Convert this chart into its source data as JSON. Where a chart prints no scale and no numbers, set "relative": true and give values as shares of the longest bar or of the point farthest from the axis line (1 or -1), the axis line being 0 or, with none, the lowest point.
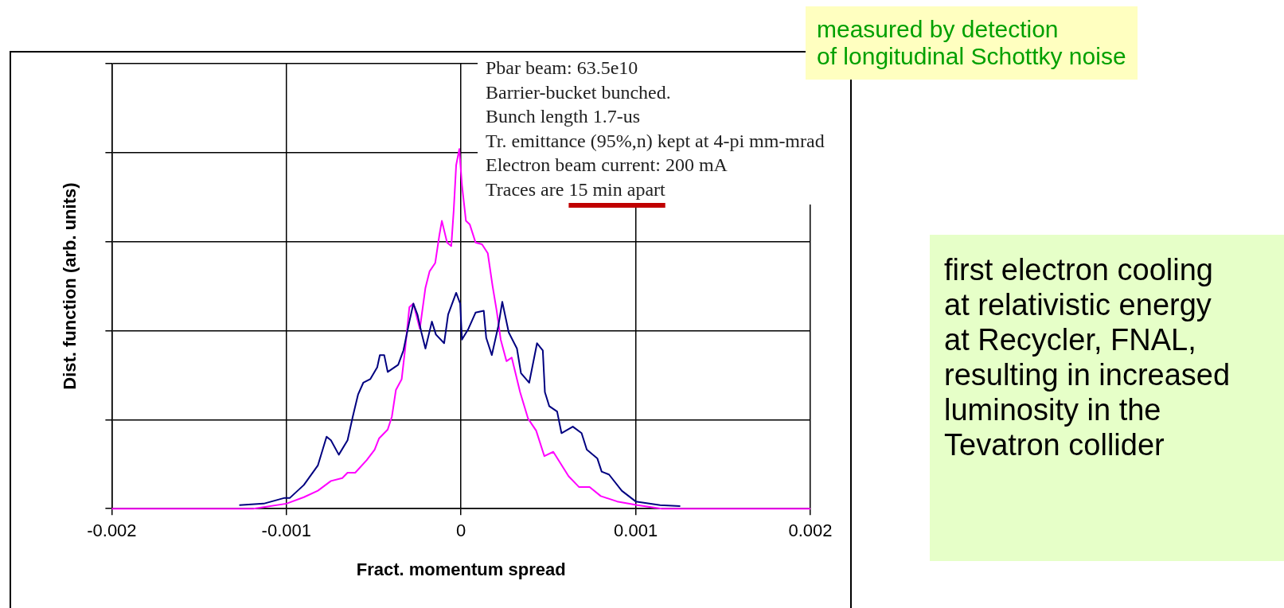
{
  "chart_data": {
    "type": "line",
    "xlabel": "Fract. momentum spread",
    "ylabel": "Dist. function (arb. units)",
    "relative": true,
    "xlim": [
      -0.002,
      0.002
    ],
    "xticks": [
      -0.002,
      -0.001,
      0,
      0.001,
      0.002
    ],
    "grid": true,
    "legend": false,
    "marker": "none",
    "annotations": [
      "Pbar beam: 63.5e10",
      "Barrier-bucket bunched.",
      "Bunch length 1.7-us",
      "Tr. emittance (95%,n) kept at 4-pi mm-mrad",
      "Electron beam current: 200 mA",
      "Traces are 15 min apart",
      "measured by detection",
      "of longitudinal Schottky noise",
      "first electron cooling at relativistic energy at Recycler, FNAL, resulting in increased luminosity in the Tevatron collider"
    ],
    "series": [
      {
        "color": "#000080",
        "x": [
          -0.00127,
          -0.00113,
          -0.00101,
          -0.00098,
          -0.0009,
          -0.00082,
          -0.00077,
          -0.000745,
          -0.0007,
          -0.00065,
          -0.00062,
          -0.00059,
          -0.00056,
          -0.00052,
          -0.00048,
          -0.000465,
          -0.00044,
          -0.00042,
          -0.00036,
          -0.00033,
          -0.000296,
          -0.000273,
          -0.00025,
          -0.000227,
          -0.000204,
          -0.000167,
          -0.000144,
          -9.7e-05,
          -7.4e-05,
          -2.8e-05,
          -5e-06,
          5e-06,
          4.2e-05,
          8.3e-05,
          0.00013,
          0.000144,
          0.000176,
          0.000213,
          0.000236,
          0.000273,
          0.00032,
          0.000343,
          0.00039,
          0.000435,
          0.000468,
          0.00048,
          0.000505,
          0.00055,
          0.000575,
          0.00064,
          0.00069,
          0.00072,
          0.00078,
          0.000805,
          0.000847,
          0.00092,
          0.001,
          0.00114,
          0.001255
        ],
        "values": [
          0.01,
          0.014,
          0.03,
          0.03,
          0.066,
          0.12,
          0.2,
          0.19,
          0.15,
          0.19,
          0.256,
          0.317,
          0.35,
          0.36,
          0.393,
          0.427,
          0.427,
          0.38,
          0.4,
          0.44,
          0.52,
          0.57,
          0.54,
          0.49,
          0.445,
          0.52,
          0.484,
          0.46,
          0.54,
          0.6,
          0.57,
          0.47,
          0.5,
          0.545,
          0.55,
          0.475,
          0.427,
          0.507,
          0.575,
          0.49,
          0.445,
          0.377,
          0.35,
          0.46,
          0.44,
          0.324,
          0.285,
          0.27,
          0.21,
          0.228,
          0.21,
          0.164,
          0.14,
          0.103,
          0.095,
          0.05,
          0.02,
          0.01,
          0.007
        ]
      },
      {
        "color": "#ff00ff",
        "x": [
          -0.002,
          -0.00119,
          -0.001,
          -0.0009,
          -0.00082,
          -0.000745,
          -0.00068,
          -0.00065,
          -0.000606,
          -0.00054,
          -0.000495,
          -0.00047,
          -0.00042,
          -0.000396,
          -0.000373,
          -0.00034,
          -0.00032,
          -0.000296,
          -0.000273,
          -0.000236,
          -0.000204,
          -0.00018,
          -0.000148,
          -0.000125,
          -0.00011,
          -8e-05,
          -5.6e-05,
          -4.2e-05,
          -2.8e-05,
          -1e-05,
          5e-06,
          2.8e-05,
          5e-05,
          8.3e-05,
          0.00012,
          0.000153,
          0.00018,
          0.000204,
          0.000227,
          0.00026,
          0.00029,
          0.000338,
          0.000384,
          0.00043,
          0.000477,
          0.000528,
          0.000616,
          0.000676,
          0.000736,
          0.0008,
          0.000894,
          0.00101,
          0.00115,
          0.002
        ],
        "values": [
          0,
          0,
          0.014,
          0.032,
          0.05,
          0.077,
          0.085,
          0.1,
          0.1,
          0.135,
          0.164,
          0.195,
          0.22,
          0.256,
          0.33,
          0.36,
          0.445,
          0.56,
          0.57,
          0.5,
          0.614,
          0.66,
          0.683,
          0.758,
          0.8,
          0.74,
          0.73,
          0.83,
          0.955,
          1,
          0.9,
          0.8,
          0.79,
          0.74,
          0.735,
          0.71,
          0.62,
          0.55,
          0.47,
          0.41,
          0.42,
          0.324,
          0.25,
          0.217,
          0.146,
          0.158,
          0.09,
          0.06,
          0.06,
          0.035,
          0.02,
          0.01,
          0,
          0
        ]
      }
    ]
  }
}
